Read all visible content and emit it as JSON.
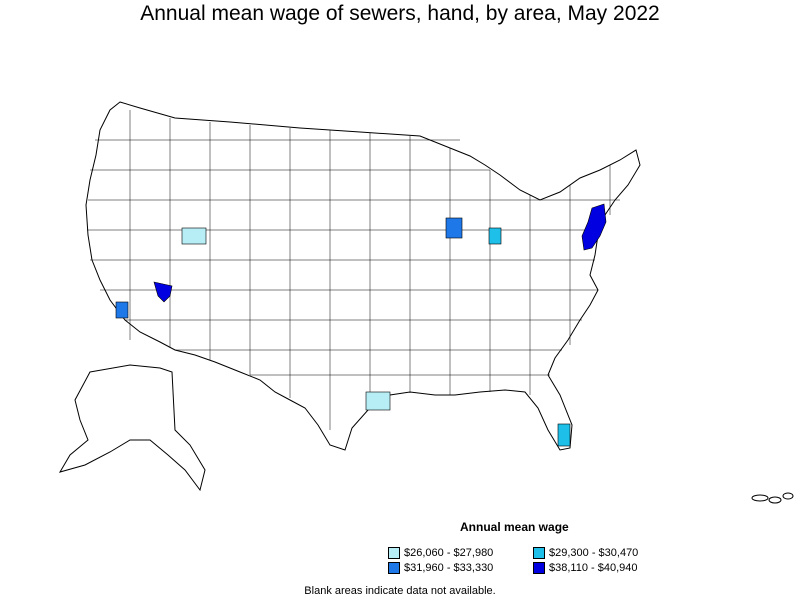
{
  "title": "Annual mean wage of sewers, hand, by area, May 2022",
  "legend": {
    "title": "Annual mean wage",
    "items": [
      {
        "label": "$26,060 - $27,980",
        "color": "#b7eef5"
      },
      {
        "label": "$29,300 - $30,470",
        "color": "#1ec0ea"
      },
      {
        "label": "$31,960 - $33,330",
        "color": "#1f78e8"
      },
      {
        "label": "$38,110 - $40,940",
        "color": "#0000e0"
      }
    ]
  },
  "note": "Blank areas indicate data not available."
}
